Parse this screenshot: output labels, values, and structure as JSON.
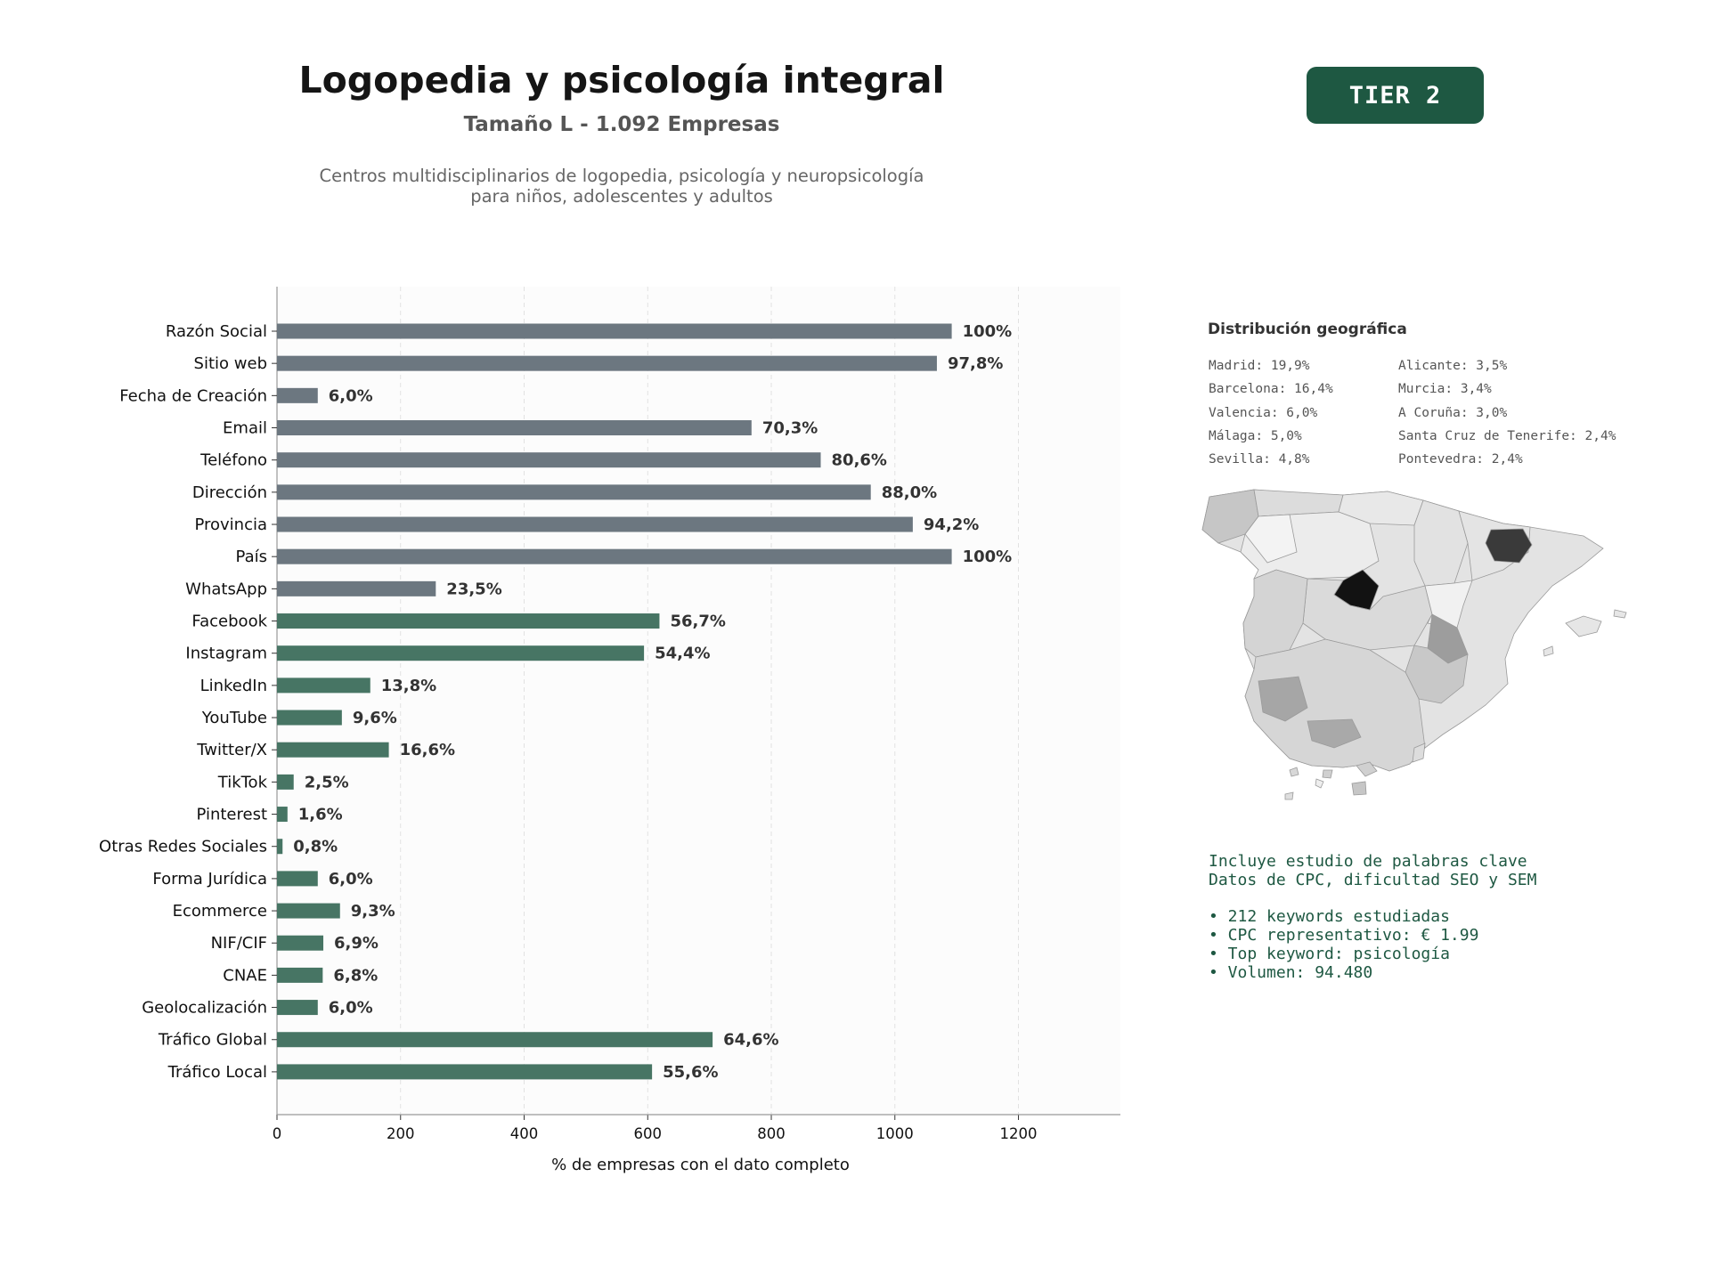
{
  "header": {
    "title": "Logopedia y psicología integral",
    "subtitle": "Tamaño L - 1.092 Empresas",
    "description_line1": "Centros multidisciplinarios de logopedia, psicología y neuropsicología",
    "description_line2": "para niños, adolescentes y adultos",
    "tier_badge": "TIER 2"
  },
  "colors": {
    "basic_bar": "#6c7780",
    "digital_bar": "#477564",
    "badge_bg": "#1e5842",
    "keyword_text": "#1e5842"
  },
  "chart_data": {
    "type": "bar",
    "orientation": "horizontal",
    "xlabel": "% de empresas con el dato completo",
    "ylabel": "",
    "xlim": [
      0,
      1365
    ],
    "xticks": [
      0,
      200,
      400,
      600,
      800,
      1000,
      1200
    ],
    "grid": "vertical dashed",
    "categories": [
      "Razón Social",
      "Sitio web",
      "Fecha de Creación",
      "Email",
      "Teléfono",
      "Dirección",
      "Provincia",
      "País",
      "WhatsApp",
      "Facebook",
      "Instagram",
      "LinkedIn",
      "YouTube",
      "Twitter/X",
      "TikTok",
      "Pinterest",
      "Otras Redes Sociales",
      "Forma Jurídica",
      "Ecommerce",
      "NIF/CIF",
      "CNAE",
      "Geolocalización",
      "Tráfico Global",
      "Tráfico Local"
    ],
    "values": [
      1092,
      1068,
      66,
      768,
      880,
      961,
      1029,
      1092,
      257,
      619,
      594,
      151,
      105,
      181,
      27,
      17,
      9,
      66,
      102,
      75,
      74,
      66,
      705,
      607
    ],
    "labels": [
      "100%",
      "97,8%",
      "6,0%",
      "70,3%",
      "80,6%",
      "88,0%",
      "94,2%",
      "100%",
      "23,5%",
      "56,7%",
      "54,4%",
      "13,8%",
      "9,6%",
      "16,6%",
      "2,5%",
      "1,6%",
      "0,8%",
      "6,0%",
      "9,3%",
      "6,9%",
      "6,8%",
      "6,0%",
      "64,6%",
      "55,6%"
    ],
    "groups": [
      "basic",
      "basic",
      "basic",
      "basic",
      "basic",
      "basic",
      "basic",
      "basic",
      "basic",
      "digital",
      "digital",
      "digital",
      "digital",
      "digital",
      "digital",
      "digital",
      "digital",
      "digital",
      "digital",
      "digital",
      "digital",
      "digital",
      "digital",
      "digital"
    ]
  },
  "geo": {
    "title": "Distribución geográfica",
    "left": [
      "Madrid: 19,9%",
      "Barcelona: 16,4%",
      "Valencia: 6,0%",
      "Málaga: 5,0%",
      "Sevilla: 4,8%"
    ],
    "right": [
      "Alicante: 3,5%",
      "Murcia: 3,4%",
      "A Coruña: 3,0%",
      "Santa Cruz de Tenerife: 2,4%",
      "Pontevedra: 2,4%"
    ]
  },
  "keywords": {
    "line1": "Incluye estudio de palabras clave",
    "line2": "Datos de CPC, dificultad SEO y SEM",
    "bullets": [
      "• 212 keywords estudiadas",
      "• CPC representativo: € 1.99",
      "• Top keyword: psicología",
      "• Volumen: 94.480"
    ]
  }
}
